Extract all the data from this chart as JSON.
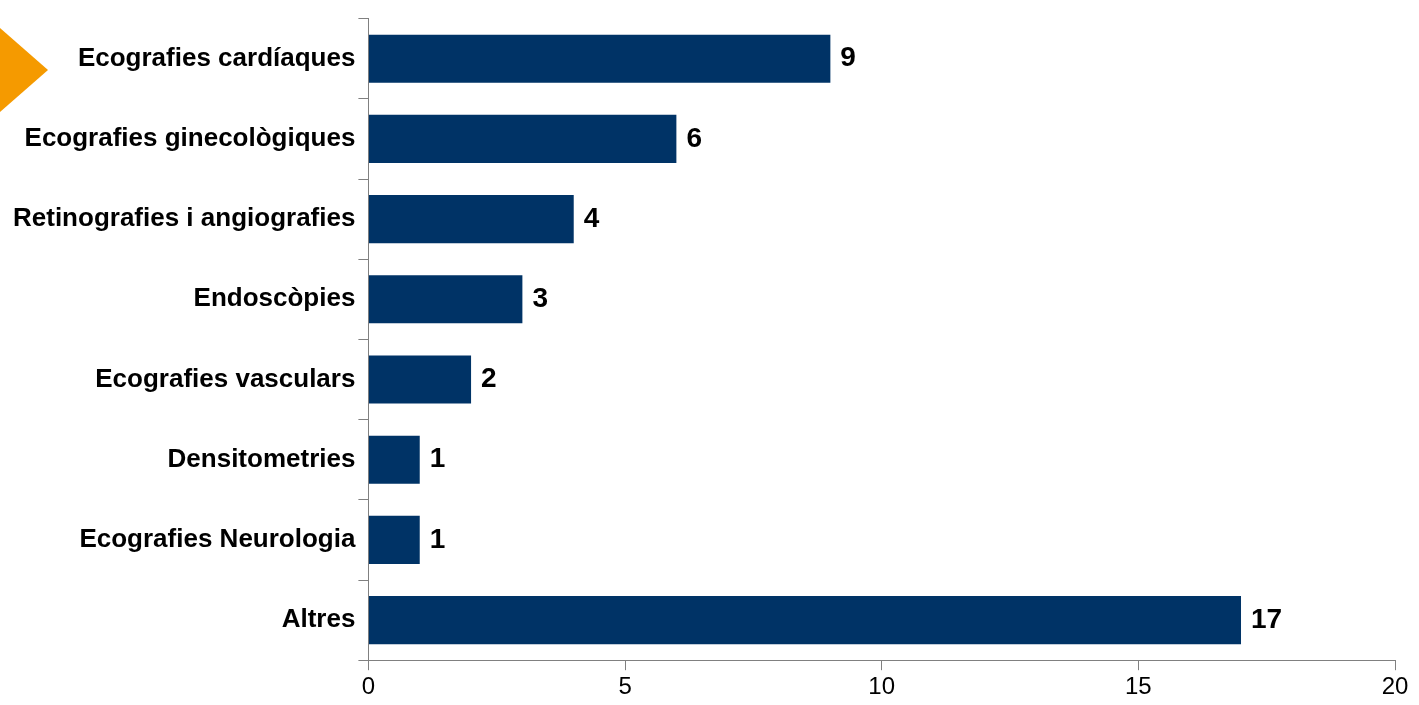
{
  "chart_data": {
    "type": "bar",
    "orientation": "horizontal",
    "categories": [
      "Ecografies cardíaques",
      "Ecografies ginecològiques",
      "Retinografies i angiografies",
      "Endoscòpies",
      "Ecografies vasculars",
      "Densitometries",
      "Ecografies Neurologia",
      "Altres"
    ],
    "values": [
      9,
      6,
      4,
      3,
      2,
      1,
      1,
      17
    ],
    "color": "#003366",
    "xlim": [
      0,
      20
    ],
    "xticks": [
      0,
      5,
      10,
      15,
      20
    ],
    "grid": false,
    "legend": false,
    "data_labels": true
  }
}
